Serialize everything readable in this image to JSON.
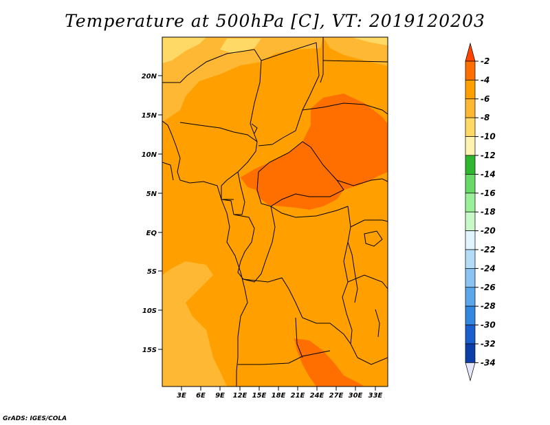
{
  "title": "Temperature at 500hPa [C], VT: 2019120203",
  "credit": "GrADS: IGES/COLA",
  "lat_labels": [
    "20N",
    "15N",
    "10N",
    "5N",
    "EQ",
    "5S",
    "10S",
    "15S"
  ],
  "lon_labels": [
    "3E",
    "6E",
    "9E",
    "12E",
    "15E",
    "18E",
    "21E",
    "24E",
    "27E",
    "30E",
    "33E"
  ],
  "colorbar": {
    "labels": [
      "-2",
      "-4",
      "-6",
      "-8",
      "-10",
      "-12",
      "-14",
      "-16",
      "-18",
      "-20",
      "-22",
      "-24",
      "-26",
      "-28",
      "-30",
      "-32",
      "-34"
    ],
    "colors": [
      "#ff4500",
      "#ff6f00",
      "#ffa000",
      "#ffb833",
      "#ffd966",
      "#fff3b0",
      "#2fb82f",
      "#66d966",
      "#99f099",
      "#c8f7c8",
      "#e0f5ff",
      "#b3dcf7",
      "#8ac4f2",
      "#5aa8ea",
      "#3288e0",
      "#1a5fd0",
      "#0b3ea8",
      "#06157d"
    ],
    "arrow_top_color": "#ff4500",
    "arrow_bottom_color": "#e6e6fa"
  },
  "map_colors": {
    "level_m2_m4": "#ff6f00",
    "level_m4_m6": "#ffa000",
    "level_m6_m8": "#ffb833",
    "level_m8_m10": "#ffd966",
    "level_m10_m12": "#fff3b0"
  }
}
